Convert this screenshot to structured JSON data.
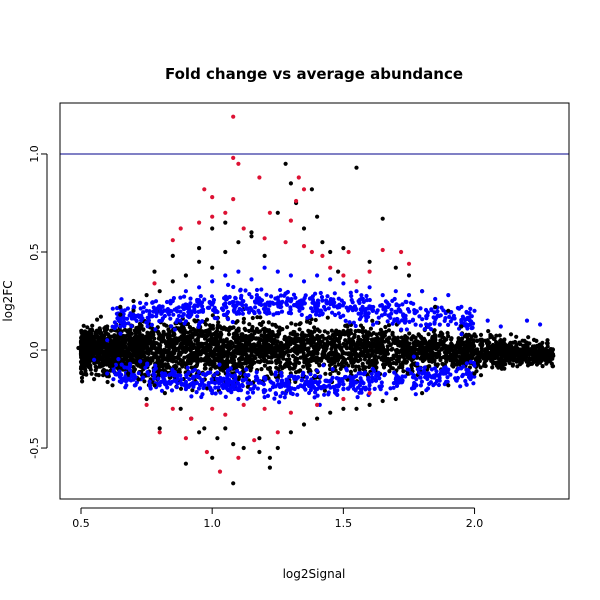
{
  "chart_data": {
    "type": "scatter",
    "title": "Fold change vs average abundance",
    "xlabel": "log2Signal",
    "ylabel": "log2FC",
    "xlim": [
      0.42,
      2.36
    ],
    "ylim": [
      -0.76,
      1.26
    ],
    "xticks": [
      0.5,
      1.0,
      1.5,
      2.0
    ],
    "xtick_labels": [
      "0.5",
      "1.0",
      "1.5",
      "2.0"
    ],
    "yticks": [
      -0.5,
      0.0,
      0.5,
      1.0
    ],
    "ytick_labels": [
      "-0.5",
      "0.0",
      "0.5",
      "1.0"
    ],
    "hline": {
      "y": 1.0,
      "color": "#00008b"
    },
    "grid": false,
    "legend": "none",
    "series": [
      {
        "color": "#000000",
        "points": [
          [
            0.49,
            0.01
          ],
          [
            0.5,
            -0.02
          ],
          [
            0.52,
            0.03
          ],
          [
            0.55,
            -0.05
          ],
          [
            0.58,
            0.07
          ],
          [
            0.6,
            0.12
          ],
          [
            0.62,
            -0.08
          ],
          [
            0.65,
            0.18
          ],
          [
            0.68,
            -0.12
          ],
          [
            0.7,
            0.2
          ],
          [
            0.72,
            -0.15
          ],
          [
            0.75,
            0.28
          ],
          [
            0.78,
            -0.18
          ],
          [
            0.8,
            0.3
          ],
          [
            0.82,
            -0.22
          ],
          [
            0.85,
            0.35
          ],
          [
            0.88,
            -0.3
          ],
          [
            0.9,
            0.38
          ],
          [
            0.92,
            -0.35
          ],
          [
            0.95,
            0.45
          ],
          [
            0.97,
            -0.4
          ],
          [
            1.0,
            0.42
          ],
          [
            1.02,
            -0.45
          ],
          [
            1.05,
            0.5
          ],
          [
            1.08,
            -0.48
          ],
          [
            1.1,
            0.55
          ],
          [
            1.12,
            -0.5
          ],
          [
            1.15,
            0.6
          ],
          [
            1.18,
            -0.52
          ],
          [
            1.2,
            0.48
          ],
          [
            1.22,
            -0.55
          ],
          [
            1.25,
            0.7
          ],
          [
            1.28,
            0.95
          ],
          [
            1.3,
            0.85
          ],
          [
            1.32,
            0.75
          ],
          [
            1.35,
            0.62
          ],
          [
            1.38,
            0.82
          ],
          [
            1.4,
            0.68
          ],
          [
            1.42,
            0.55
          ],
          [
            1.45,
            0.5
          ],
          [
            1.48,
            0.4
          ],
          [
            1.5,
            0.52
          ],
          [
            1.55,
            0.93
          ],
          [
            1.6,
            0.45
          ],
          [
            1.65,
            0.67
          ],
          [
            1.7,
            0.42
          ],
          [
            1.75,
            0.38
          ],
          [
            1.8,
            0.3
          ],
          [
            1.85,
            0.22
          ],
          [
            1.9,
            0.2
          ],
          [
            1.95,
            0.12
          ],
          [
            2.0,
            0.08
          ],
          [
            2.05,
            0.05
          ],
          [
            2.1,
            0.02
          ],
          [
            2.15,
            0.0
          ],
          [
            2.2,
            -0.02
          ],
          [
            2.25,
            -0.01
          ],
          [
            2.3,
            -0.03
          ],
          [
            0.9,
            -0.58
          ],
          [
            1.0,
            -0.55
          ],
          [
            1.08,
            -0.68
          ],
          [
            1.22,
            -0.6
          ],
          [
            1.18,
            -0.45
          ],
          [
            1.3,
            -0.42
          ],
          [
            1.4,
            -0.35
          ],
          [
            1.5,
            -0.3
          ],
          [
            1.6,
            -0.28
          ],
          [
            1.7,
            -0.25
          ],
          [
            1.8,
            -0.22
          ],
          [
            1.9,
            -0.18
          ],
          [
            2.0,
            -0.12
          ],
          [
            2.1,
            -0.08
          ],
          [
            0.65,
            0.22
          ],
          [
            0.7,
            0.25
          ],
          [
            0.78,
            0.4
          ],
          [
            0.85,
            0.48
          ],
          [
            0.95,
            0.52
          ],
          [
            1.0,
            0.62
          ],
          [
            1.05,
            0.65
          ],
          [
            1.15,
            0.58
          ],
          [
            0.62,
            -0.18
          ],
          [
            0.75,
            -0.25
          ],
          [
            0.8,
            -0.4
          ],
          [
            0.95,
            -0.42
          ],
          [
            1.05,
            -0.4
          ],
          [
            1.25,
            -0.5
          ],
          [
            1.35,
            -0.38
          ],
          [
            1.45,
            -0.32
          ],
          [
            1.55,
            -0.3
          ],
          [
            1.65,
            -0.26
          ]
        ]
      },
      {
        "color": "#0000ff",
        "points": [
          [
            0.55,
            -0.05
          ],
          [
            0.6,
            0.05
          ],
          [
            0.65,
            0.15
          ],
          [
            0.7,
            0.18
          ],
          [
            0.75,
            0.2
          ],
          [
            0.8,
            0.22
          ],
          [
            0.85,
            0.25
          ],
          [
            0.9,
            0.3
          ],
          [
            0.95,
            0.32
          ],
          [
            1.0,
            0.35
          ],
          [
            1.05,
            0.38
          ],
          [
            1.1,
            0.4
          ],
          [
            1.15,
            0.36
          ],
          [
            1.2,
            0.42
          ],
          [
            1.25,
            0.4
          ],
          [
            1.3,
            0.38
          ],
          [
            1.35,
            0.35
          ],
          [
            1.4,
            0.38
          ],
          [
            1.45,
            0.36
          ],
          [
            1.5,
            0.34
          ],
          [
            1.55,
            0.3
          ],
          [
            1.6,
            0.32
          ],
          [
            1.65,
            0.28
          ],
          [
            1.7,
            0.3
          ],
          [
            1.75,
            0.28
          ],
          [
            1.8,
            0.3
          ],
          [
            1.85,
            0.26
          ],
          [
            1.9,
            0.28
          ],
          [
            1.95,
            0.22
          ],
          [
            2.0,
            0.2
          ],
          [
            2.05,
            0.15
          ],
          [
            2.1,
            0.12
          ],
          [
            2.2,
            0.15
          ],
          [
            2.25,
            0.13
          ],
          [
            0.6,
            -0.12
          ],
          [
            0.7,
            -0.15
          ],
          [
            0.8,
            -0.18
          ],
          [
            0.9,
            -0.2
          ],
          [
            1.0,
            -0.22
          ],
          [
            1.1,
            -0.25
          ],
          [
            1.2,
            -0.24
          ],
          [
            1.3,
            -0.22
          ],
          [
            1.4,
            -0.2
          ],
          [
            1.5,
            -0.2
          ],
          [
            1.6,
            -0.18
          ],
          [
            1.7,
            -0.15
          ],
          [
            1.8,
            -0.12
          ],
          [
            1.9,
            -0.1
          ],
          [
            2.0,
            -0.08
          ]
        ]
      },
      {
        "color": "#dd1133",
        "points": [
          [
            1.08,
            1.19
          ],
          [
            1.08,
            0.98
          ],
          [
            1.1,
            0.95
          ],
          [
            0.97,
            0.82
          ],
          [
            1.0,
            0.78
          ],
          [
            1.08,
            0.77
          ],
          [
            1.18,
            0.88
          ],
          [
            1.33,
            0.88
          ],
          [
            1.35,
            0.82
          ],
          [
            1.32,
            0.76
          ],
          [
            1.22,
            0.7
          ],
          [
            1.3,
            0.66
          ],
          [
            0.88,
            0.62
          ],
          [
            0.95,
            0.65
          ],
          [
            1.0,
            0.68
          ],
          [
            1.05,
            0.7
          ],
          [
            1.12,
            0.62
          ],
          [
            1.2,
            0.57
          ],
          [
            1.28,
            0.55
          ],
          [
            1.35,
            0.53
          ],
          [
            1.38,
            0.5
          ],
          [
            1.42,
            0.48
          ],
          [
            1.52,
            0.5
          ],
          [
            1.65,
            0.51
          ],
          [
            1.72,
            0.5
          ],
          [
            1.75,
            0.44
          ],
          [
            0.85,
            0.56
          ],
          [
            1.45,
            0.42
          ],
          [
            1.5,
            0.38
          ],
          [
            1.6,
            0.4
          ],
          [
            1.55,
            0.35
          ],
          [
            0.78,
            0.34
          ],
          [
            0.75,
            -0.28
          ],
          [
            0.85,
            -0.3
          ],
          [
            0.92,
            -0.35
          ],
          [
            1.0,
            -0.3
          ],
          [
            1.05,
            -0.33
          ],
          [
            1.12,
            -0.28
          ],
          [
            1.2,
            -0.3
          ],
          [
            1.3,
            -0.32
          ],
          [
            1.4,
            -0.28
          ],
          [
            1.5,
            -0.25
          ],
          [
            1.6,
            -0.22
          ],
          [
            0.98,
            -0.52
          ],
          [
            1.03,
            -0.62
          ],
          [
            1.1,
            -0.55
          ],
          [
            1.16,
            -0.46
          ],
          [
            1.25,
            -0.42
          ],
          [
            0.8,
            -0.42
          ],
          [
            0.9,
            -0.45
          ]
        ]
      }
    ],
    "dense_cloud": [
      {
        "x0": 0.5,
        "x1": 2.3,
        "color": "#000000",
        "center": [
          0,
          0,
          0,
          0,
          -0.02
        ],
        "spread": [
          0.1,
          0.14,
          0.12,
          0.09,
          0.05
        ],
        "n": 3800
      },
      {
        "x0": 0.62,
        "x1": 2.0,
        "color": "#0000ff",
        "upper": [
          0.16,
          0.22,
          0.24,
          0.2,
          0.14
        ],
        "lower": [
          -0.12,
          -0.16,
          -0.18,
          -0.16,
          -0.12
        ],
        "n": 1200
      }
    ]
  }
}
